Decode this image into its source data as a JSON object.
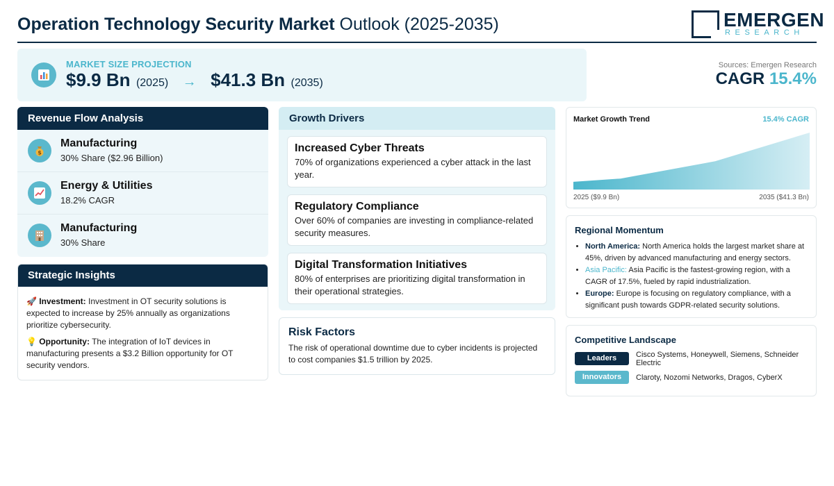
{
  "header": {
    "title_bold": "Operation Technology Security Market",
    "title_light": "Outlook (2025-2035)",
    "logo_name": "EMERGEN",
    "logo_sub": "RESEARCH"
  },
  "projection": {
    "label": "MARKET SIZE PROJECTION",
    "start_value": "$9.9 Bn",
    "start_year": "(2025)",
    "arrow": "→",
    "end_value": "$41.3 Bn",
    "end_year": "(2035)",
    "icon": "chart-icon"
  },
  "sources": "Sources: Emergen Research",
  "cagr": {
    "label": "CAGR",
    "value": "15.4%"
  },
  "revenue": {
    "title": "Revenue Flow Analysis",
    "items": [
      {
        "title": "Manufacturing",
        "sub": "30% Share ($2.96 Billion)",
        "icon": "money-bag-icon"
      },
      {
        "title": "Energy & Utilities",
        "sub": "18.2% CAGR",
        "icon": "trend-up-icon"
      },
      {
        "title": "Manufacturing",
        "sub": "30% Share",
        "icon": "building-icon"
      }
    ]
  },
  "strategic": {
    "title": "Strategic Insights",
    "items": [
      {
        "icon": "rocket-icon",
        "label": "Investment:",
        "text": "Investment in OT security solutions is expected to increase by 25% annually as organizations prioritize cybersecurity."
      },
      {
        "icon": "lightbulb-icon",
        "label": "Opportunity:",
        "text": "The integration of IoT devices in manufacturing presents a $3.2 Billion opportunity for OT security vendors."
      }
    ]
  },
  "drivers": {
    "title": "Growth Drivers",
    "items": [
      {
        "title": "Increased Cyber Threats",
        "text": "70% of organizations experienced a cyber attack in the last year."
      },
      {
        "title": "Regulatory Compliance",
        "text": "Over 60% of companies are investing in compliance-related security measures."
      },
      {
        "title": "Digital Transformation Initiatives",
        "text": "80% of enterprises are prioritizing digital transformation in their operational strategies."
      }
    ]
  },
  "risk": {
    "title": "Risk Factors",
    "text": "The risk of operational downtime due to cyber incidents is projected to cost companies $1.5 trillion by 2025."
  },
  "trend": {
    "title": "Market Growth Trend",
    "cagr": "15.4% CAGR",
    "left_label": "2025 ($9.9 Bn)",
    "right_label": "2035 ($41.3 Bn)",
    "accent": "#4bb6cc"
  },
  "chart_data": {
    "type": "area",
    "x": [
      2025,
      2027,
      2031,
      2035
    ],
    "values": [
      9.9,
      12.0,
      23.0,
      41.3
    ],
    "xlim": [
      2025,
      2035
    ],
    "ylim": [
      5,
      41.3
    ],
    "title": "Market Growth Trend",
    "xlabel": "",
    "ylabel": ""
  },
  "regional": {
    "title": "Regional Momentum",
    "items": [
      {
        "name": "North America:",
        "text": "North America holds the largest market share at 45%, driven by advanced manufacturing and energy sectors.",
        "accent": false
      },
      {
        "name": "Asia Pacific:",
        "text": "Asia Pacific is the fastest-growing region, with a CAGR of 17.5%, fueled by rapid industrialization.",
        "accent": true
      },
      {
        "name": "Europe:",
        "text": "Europe is focusing on regulatory compliance, with a significant push towards GDPR-related security solutions.",
        "accent": false
      }
    ]
  },
  "competitive": {
    "title": "Competitive Landscape",
    "rows": [
      {
        "badge": "Leaders",
        "text": "Cisco Systems, Honeywell, Siemens, Schneider Electric"
      },
      {
        "badge": "Innovators",
        "text": "Claroty, Nozomi Networks, Dragos, CyberX"
      }
    ]
  },
  "colors": {
    "navy": "#0b2a44",
    "teal": "#4bb6cc",
    "light_bg": "#eaf6f9"
  }
}
